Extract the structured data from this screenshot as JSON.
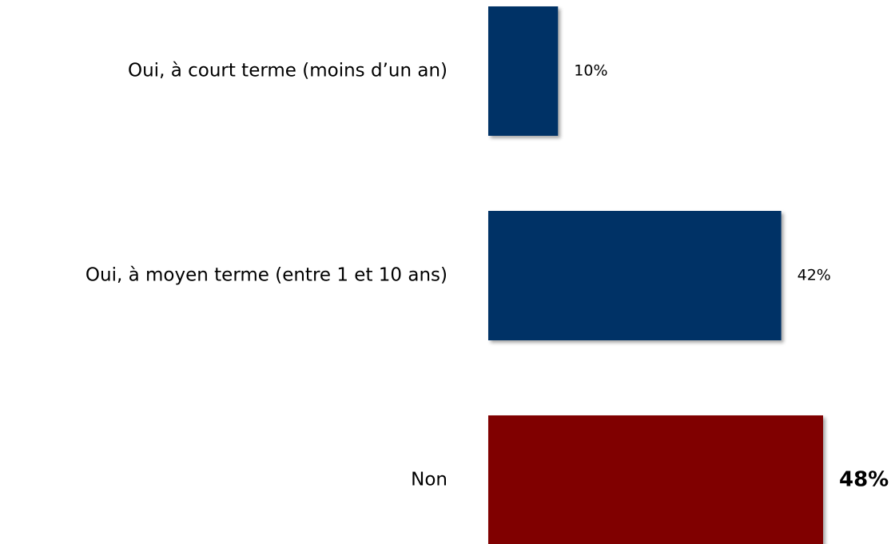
{
  "chart_data": {
    "type": "bar",
    "orientation": "horizontal",
    "categories": [
      "Oui, à court terme (moins d’un an)",
      "Oui, à moyen terme (entre 1 et 10 ans)",
      "Non"
    ],
    "values": [
      10,
      42,
      48
    ],
    "value_labels": [
      "10%",
      "42%",
      "48%"
    ],
    "colors": [
      "#003366",
      "#003366",
      "#800000"
    ]
  }
}
